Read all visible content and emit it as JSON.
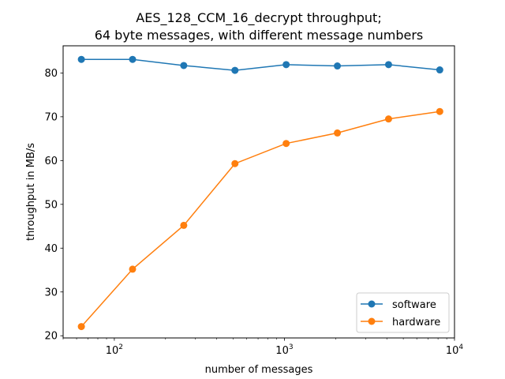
{
  "chart_data": {
    "type": "line",
    "title_line1": "AES_128_CCM_16_decrypt throughput;",
    "title_line2": "64 byte messages, with different message numbers",
    "xlabel": "number of messages",
    "ylabel": "throughput in MB/s",
    "xscale": "log",
    "xlim": [
      50,
      10000
    ],
    "ylim": [
      19.5,
      86.2
    ],
    "x": [
      64,
      128,
      256,
      512,
      1024,
      2048,
      4096,
      8192
    ],
    "yticks": [
      20,
      30,
      40,
      50,
      60,
      70,
      80
    ],
    "xticks": [
      {
        "value": 100,
        "base": "10",
        "exp": "2"
      },
      {
        "value": 1000,
        "base": "10",
        "exp": "3"
      },
      {
        "value": 10000,
        "base": "10",
        "exp": "4"
      }
    ],
    "series": [
      {
        "name": "software",
        "color": "#1f77b4",
        "values": [
          83.1,
          83.1,
          81.7,
          80.6,
          81.9,
          81.6,
          81.9,
          80.7
        ]
      },
      {
        "name": "hardware",
        "color": "#ff7f0e",
        "values": [
          22.1,
          35.2,
          45.2,
          59.3,
          63.9,
          66.3,
          69.5,
          71.2
        ]
      }
    ],
    "legend_position": "lower right",
    "grid": false
  }
}
